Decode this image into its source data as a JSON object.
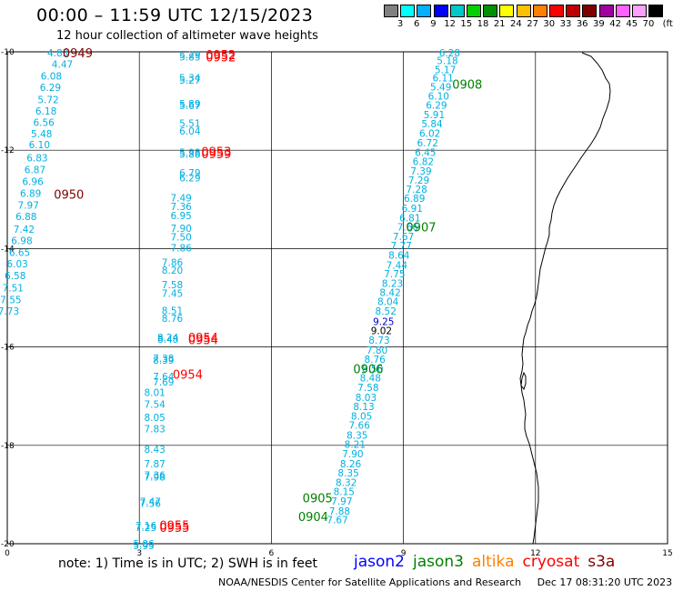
{
  "header": {
    "title": "00:00 – 11:59 UTC 12/15/2023",
    "subtitle": "12 hour collection of altimeter wave heights"
  },
  "legend": {
    "unit": "(ft)",
    "colors": [
      "#808080",
      "#00ffff",
      "#00b0ff",
      "#0000ff",
      "#00c8c8",
      "#00d000",
      "#009000",
      "#ffff00",
      "#ffc000",
      "#ff8000",
      "#ff0000",
      "#c00000",
      "#800000",
      "#a000a0",
      "#ff60ff",
      "#ffa0ff",
      "#000000"
    ],
    "labels": [
      "3",
      "6",
      "9",
      "12",
      "15",
      "18",
      "21",
      "24",
      "27",
      "30",
      "33",
      "36",
      "39",
      "42",
      "45",
      "70"
    ]
  },
  "footer": {
    "note": "note: 1) Time is in UTC; 2) SWH is in feet",
    "satellites": [
      {
        "name": "jason2",
        "color": "#0000ff"
      },
      {
        "name": "jason3",
        "color": "#008000"
      },
      {
        "name": "altika",
        "color": "#ff8000"
      },
      {
        "name": "cryosat",
        "color": "#ff0000"
      },
      {
        "name": "s3a",
        "color": "#800000"
      }
    ],
    "credit": "NOAA/NESDIS Center for Satellite Applications and Research",
    "timestamp": "Dec 17 08:31:20 UTC 2023"
  },
  "chart_data": {
    "type": "scatter",
    "xlim": [
      0,
      15
    ],
    "ylim": [
      -20,
      -10
    ],
    "xticks": [
      "0",
      "3",
      "6",
      "9",
      "12",
      "15"
    ],
    "yticks": [
      "-10",
      "-12",
      "-14",
      "-16",
      "-18",
      "-20"
    ],
    "colors": {
      "value": "#00b0e0",
      "highlight": "#0000cc",
      "dark": "#000000",
      "jason3": "#008000",
      "cryosat": "#ff0000",
      "s3a": "#800000"
    },
    "series": [
      {
        "values": [
          {
            "x": 1.15,
            "y": -10.02,
            "v": "4.83"
          },
          {
            "x": 1.25,
            "y": -10.25,
            "v": "4.47"
          },
          {
            "x": 1.0,
            "y": -10.49,
            "v": "6.08"
          },
          {
            "x": 0.98,
            "y": -10.72,
            "v": "6.29"
          },
          {
            "x": 0.93,
            "y": -10.97,
            "v": "5.72"
          },
          {
            "x": 0.88,
            "y": -11.2,
            "v": "6.18"
          },
          {
            "x": 0.83,
            "y": -11.43,
            "v": "6.56"
          },
          {
            "x": 0.78,
            "y": -11.66,
            "v": "5.48"
          },
          {
            "x": 0.73,
            "y": -11.89,
            "v": "6.10"
          },
          {
            "x": 0.68,
            "y": -12.15,
            "v": "6.83"
          },
          {
            "x": 0.63,
            "y": -12.39,
            "v": "6.87"
          },
          {
            "x": 0.58,
            "y": -12.63,
            "v": "6.96"
          },
          {
            "x": 0.53,
            "y": -12.87,
            "v": "6.89"
          },
          {
            "x": 0.48,
            "y": -13.11,
            "v": "7.97"
          },
          {
            "x": 0.43,
            "y": -13.35,
            "v": "6.88"
          },
          {
            "x": 0.38,
            "y": -13.6,
            "v": "7.42"
          },
          {
            "x": 0.33,
            "y": -13.84,
            "v": "6.98"
          },
          {
            "x": 0.28,
            "y": -14.08,
            "v": "6.65"
          },
          {
            "x": 0.23,
            "y": -14.31,
            "v": "6.03"
          },
          {
            "x": 0.18,
            "y": -14.55,
            "v": "6.58"
          },
          {
            "x": 0.13,
            "y": -14.8,
            "v": "7.51"
          },
          {
            "x": 0.08,
            "y": -15.04,
            "v": "7.55"
          },
          {
            "x": 0.03,
            "y": -15.27,
            "v": "7.73"
          }
        ]
      },
      {
        "values": [
          {
            "x": 4.15,
            "y": -10.06,
            "v": "5.29"
          },
          {
            "x": 4.15,
            "y": -10.1,
            "v": "5.85"
          },
          {
            "x": 4.15,
            "y": -10.53,
            "v": "5.34"
          },
          {
            "x": 4.15,
            "y": -10.57,
            "v": "5.27"
          },
          {
            "x": 4.15,
            "y": -11.05,
            "v": "5.89"
          },
          {
            "x": 4.15,
            "y": -11.09,
            "v": "5.67"
          },
          {
            "x": 4.15,
            "y": -11.45,
            "v": "5.51"
          },
          {
            "x": 4.15,
            "y": -11.61,
            "v": "6.04"
          },
          {
            "x": 4.15,
            "y": -12.04,
            "v": "5.98"
          },
          {
            "x": 4.15,
            "y": -12.08,
            "v": "5.88"
          },
          {
            "x": 4.15,
            "y": -12.46,
            "v": "6.79"
          },
          {
            "x": 4.15,
            "y": -12.56,
            "v": "6.29"
          },
          {
            "x": 3.95,
            "y": -12.97,
            "v": "7.49"
          },
          {
            "x": 3.95,
            "y": -13.14,
            "v": "7.36"
          },
          {
            "x": 3.95,
            "y": -13.33,
            "v": "6.95"
          },
          {
            "x": 3.95,
            "y": -13.59,
            "v": "7.90"
          },
          {
            "x": 3.95,
            "y": -13.76,
            "v": "7.50"
          },
          {
            "x": 3.95,
            "y": -13.98,
            "v": "7.86"
          },
          {
            "x": 3.75,
            "y": -14.28,
            "v": "7.86"
          },
          {
            "x": 3.75,
            "y": -14.44,
            "v": "8.20"
          },
          {
            "x": 3.75,
            "y": -14.73,
            "v": "7.58"
          },
          {
            "x": 3.75,
            "y": -14.91,
            "v": "7.45"
          },
          {
            "x": 3.75,
            "y": -15.26,
            "v": "8.51"
          },
          {
            "x": 3.75,
            "y": -15.42,
            "v": "8.76"
          },
          {
            "x": 3.65,
            "y": -15.8,
            "v": "8.24"
          },
          {
            "x": 3.65,
            "y": -15.84,
            "v": "8.48"
          },
          {
            "x": 3.55,
            "y": -16.23,
            "v": "7.38"
          },
          {
            "x": 3.55,
            "y": -16.27,
            "v": "8.39"
          },
          {
            "x": 3.55,
            "y": -16.6,
            "v": "7.64"
          },
          {
            "x": 3.55,
            "y": -16.71,
            "v": "7.69"
          },
          {
            "x": 3.35,
            "y": -16.92,
            "v": "8.01"
          },
          {
            "x": 3.35,
            "y": -17.16,
            "v": "7.54"
          },
          {
            "x": 3.35,
            "y": -17.43,
            "v": "8.05"
          },
          {
            "x": 3.35,
            "y": -17.66,
            "v": "7.83"
          },
          {
            "x": 3.35,
            "y": -18.08,
            "v": "8.43"
          },
          {
            "x": 3.35,
            "y": -18.37,
            "v": "7.87"
          },
          {
            "x": 3.35,
            "y": -18.6,
            "v": "7.36"
          },
          {
            "x": 3.35,
            "y": -18.64,
            "v": "7.98"
          },
          {
            "x": 3.25,
            "y": -19.14,
            "v": "7.47"
          },
          {
            "x": 3.25,
            "y": -19.18,
            "v": "7.56"
          },
          {
            "x": 3.15,
            "y": -19.63,
            "v": "7.16"
          },
          {
            "x": 3.15,
            "y": -19.67,
            "v": "7.25"
          },
          {
            "x": 3.1,
            "y": -20.0,
            "v": "5.86"
          },
          {
            "x": 3.1,
            "y": -20.04,
            "v": "5.95"
          }
        ]
      },
      {
        "values": [
          {
            "x": 10.05,
            "y": -10.02,
            "v": "6.28"
          },
          {
            "x": 10.0,
            "y": -10.18,
            "v": "5.18"
          },
          {
            "x": 9.95,
            "y": -10.36,
            "v": "5.17"
          },
          {
            "x": 9.9,
            "y": -10.53,
            "v": "6.11"
          },
          {
            "x": 9.85,
            "y": -10.71,
            "v": "5.49"
          },
          {
            "x": 9.8,
            "y": -10.9,
            "v": "6.10"
          },
          {
            "x": 9.75,
            "y": -11.08,
            "v": "6.29"
          },
          {
            "x": 9.7,
            "y": -11.28,
            "v": "5.91"
          },
          {
            "x": 9.65,
            "y": -11.46,
            "v": "5.84"
          },
          {
            "x": 9.6,
            "y": -11.65,
            "v": "6.02"
          },
          {
            "x": 9.55,
            "y": -11.85,
            "v": "6.72"
          },
          {
            "x": 9.5,
            "y": -12.04,
            "v": "6.45"
          },
          {
            "x": 9.45,
            "y": -12.23,
            "v": "6.82"
          },
          {
            "x": 9.4,
            "y": -12.42,
            "v": "7.39"
          },
          {
            "x": 9.35,
            "y": -12.61,
            "v": "7.29"
          },
          {
            "x": 9.3,
            "y": -12.79,
            "v": "7.28"
          },
          {
            "x": 9.25,
            "y": -12.98,
            "v": "6.89"
          },
          {
            "x": 9.2,
            "y": -13.18,
            "v": "6.91"
          },
          {
            "x": 9.15,
            "y": -13.37,
            "v": "6.81"
          },
          {
            "x": 9.1,
            "y": -13.56,
            "v": "7.66"
          },
          {
            "x": 9.0,
            "y": -13.75,
            "v": "7.67"
          },
          {
            "x": 8.95,
            "y": -13.94,
            "v": "7.77"
          },
          {
            "x": 8.9,
            "y": -14.13,
            "v": "8.64"
          },
          {
            "x": 8.85,
            "y": -14.33,
            "v": "7.44"
          },
          {
            "x": 8.8,
            "y": -14.51,
            "v": "7.75"
          },
          {
            "x": 8.75,
            "y": -14.7,
            "v": "8.23"
          },
          {
            "x": 8.7,
            "y": -14.89,
            "v": "8.42"
          },
          {
            "x": 8.65,
            "y": -15.07,
            "v": "8.04"
          },
          {
            "x": 8.6,
            "y": -15.27,
            "v": "8.52"
          },
          {
            "x": 8.55,
            "y": -15.48,
            "v": "9.25",
            "c": "highlight"
          },
          {
            "x": 8.5,
            "y": -15.67,
            "v": "9.02",
            "c": "dark"
          },
          {
            "x": 8.45,
            "y": -15.86,
            "v": "8.73"
          },
          {
            "x": 8.4,
            "y": -16.06,
            "v": "7.80"
          },
          {
            "x": 8.35,
            "y": -16.25,
            "v": "8.76"
          },
          {
            "x": 8.3,
            "y": -16.44,
            "v": "8.50"
          },
          {
            "x": 8.25,
            "y": -16.63,
            "v": "8.48"
          },
          {
            "x": 8.2,
            "y": -16.82,
            "v": "7.58"
          },
          {
            "x": 8.15,
            "y": -17.02,
            "v": "8.03"
          },
          {
            "x": 8.1,
            "y": -17.21,
            "v": "8.13"
          },
          {
            "x": 8.05,
            "y": -17.4,
            "v": "8.05"
          },
          {
            "x": 8.0,
            "y": -17.59,
            "v": "7.66"
          },
          {
            "x": 7.95,
            "y": -17.79,
            "v": "8.35"
          },
          {
            "x": 7.9,
            "y": -17.98,
            "v": "8.21"
          },
          {
            "x": 7.85,
            "y": -18.17,
            "v": "7.90"
          },
          {
            "x": 7.8,
            "y": -18.37,
            "v": "8.26"
          },
          {
            "x": 7.75,
            "y": -18.56,
            "v": "8.35"
          },
          {
            "x": 7.7,
            "y": -18.75,
            "v": "8.32"
          },
          {
            "x": 7.65,
            "y": -18.94,
            "v": "8.15"
          },
          {
            "x": 7.6,
            "y": -19.13,
            "v": "7.97"
          },
          {
            "x": 7.55,
            "y": -19.33,
            "v": "7.88"
          },
          {
            "x": 7.5,
            "y": -19.51,
            "v": "7.67"
          }
        ]
      }
    ],
    "annotations": [
      {
        "x": 1.6,
        "y": -10.02,
        "t": "0949",
        "c": "s3a"
      },
      {
        "x": 1.4,
        "y": -12.89,
        "t": "0950",
        "c": "s3a"
      },
      {
        "x": 4.85,
        "y": -10.06,
        "t": "0952",
        "c": "cryosat"
      },
      {
        "x": 4.85,
        "y": -10.1,
        "t": "0952",
        "c": "cryosat"
      },
      {
        "x": 4.75,
        "y": -12.02,
        "t": "0953",
        "c": "cryosat"
      },
      {
        "x": 4.75,
        "y": -12.07,
        "t": "0959",
        "c": "cryosat"
      },
      {
        "x": 4.45,
        "y": -15.8,
        "t": "0954",
        "c": "cryosat"
      },
      {
        "x": 4.45,
        "y": -15.85,
        "t": "0954",
        "c": "cryosat"
      },
      {
        "x": 4.1,
        "y": -16.55,
        "t": "0954",
        "c": "cryosat"
      },
      {
        "x": 3.8,
        "y": -19.62,
        "t": "0955",
        "c": "cryosat"
      },
      {
        "x": 3.8,
        "y": -19.67,
        "t": "0955",
        "c": "cryosat"
      },
      {
        "x": 10.45,
        "y": -10.66,
        "t": "0908",
        "c": "jason3"
      },
      {
        "x": 9.4,
        "y": -13.56,
        "t": "0907",
        "c": "jason3"
      },
      {
        "x": 8.2,
        "y": -16.44,
        "t": "0906",
        "c": "jason3"
      },
      {
        "x": 7.05,
        "y": -19.07,
        "t": "0905",
        "c": "jason3"
      },
      {
        "x": 6.95,
        "y": -19.45,
        "t": "0904",
        "c": "jason3"
      }
    ]
  }
}
